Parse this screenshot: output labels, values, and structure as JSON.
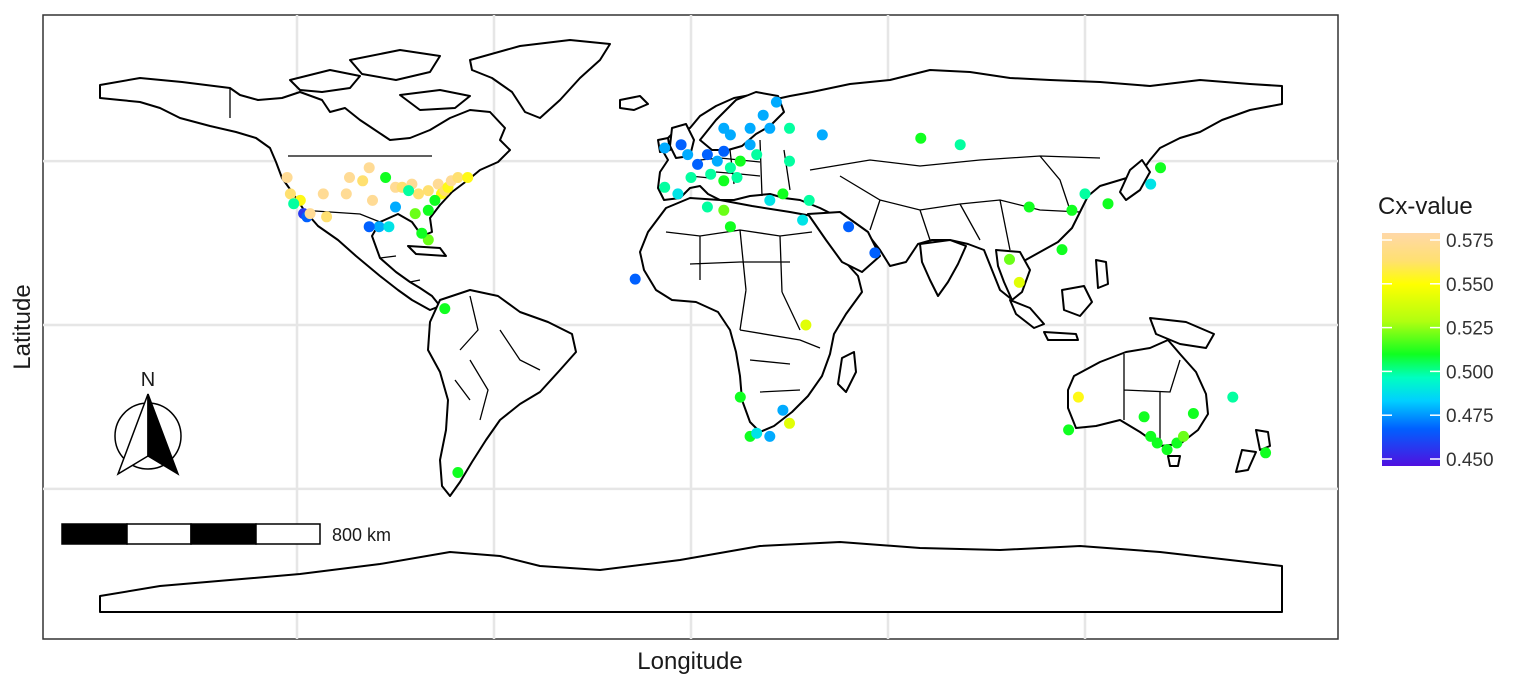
{
  "axes": {
    "xlabel": "Longitude",
    "ylabel": "Latitude"
  },
  "legend": {
    "title": "Cx-value",
    "range": [
      0.45,
      0.575
    ],
    "ticks": [
      "0.575",
      "0.550",
      "0.525",
      "0.500",
      "0.475",
      "0.450"
    ],
    "tick_values": [
      0.575,
      0.55,
      0.525,
      0.5,
      0.475,
      0.45
    ],
    "gradient": [
      {
        "at": 0.0,
        "color": "#FFD8A8"
      },
      {
        "at": 0.12,
        "color": "#FFE070"
      },
      {
        "at": 0.22,
        "color": "#FFFF00"
      },
      {
        "at": 0.38,
        "color": "#B0FF10"
      },
      {
        "at": 0.52,
        "color": "#10FF20"
      },
      {
        "at": 0.62,
        "color": "#00FFC0"
      },
      {
        "at": 0.72,
        "color": "#00D0FF"
      },
      {
        "at": 0.84,
        "color": "#0060FF"
      },
      {
        "at": 1.0,
        "color": "#5010E0"
      }
    ]
  },
  "scale_bar": {
    "label": "800 km"
  },
  "north_arrow": {
    "label": "N"
  },
  "map": {
    "projection": "equirectangular",
    "lon_range": [
      -180,
      180
    ],
    "lat_range": [
      -90,
      90
    ],
    "gridlines": {
      "lon": [
        -120,
        -60,
        0,
        60,
        120
      ],
      "lat": [
        -50,
        0,
        50
      ]
    },
    "panel_border": true
  },
  "chart_data": {
    "type": "scatter",
    "x_variable": "Longitude",
    "y_variable": "Latitude",
    "color_variable": "Cx-value",
    "points": [
      {
        "lon": -123,
        "lat": 45,
        "cx": 0.57
      },
      {
        "lon": -122,
        "lat": 40,
        "cx": 0.56
      },
      {
        "lon": -119,
        "lat": 38,
        "cx": 0.55
      },
      {
        "lon": -118,
        "lat": 34,
        "cx": 0.46
      },
      {
        "lon": -117,
        "lat": 33,
        "cx": 0.47
      },
      {
        "lon": -116,
        "lat": 34,
        "cx": 0.57
      },
      {
        "lon": -121,
        "lat": 37,
        "cx": 0.5
      },
      {
        "lon": -112,
        "lat": 40,
        "cx": 0.57
      },
      {
        "lon": -111,
        "lat": 33,
        "cx": 0.56
      },
      {
        "lon": -105,
        "lat": 40,
        "cx": 0.57
      },
      {
        "lon": -104,
        "lat": 45,
        "cx": 0.57
      },
      {
        "lon": -98,
        "lat": 48,
        "cx": 0.57
      },
      {
        "lon": -100,
        "lat": 44,
        "cx": 0.56
      },
      {
        "lon": -97,
        "lat": 38,
        "cx": 0.57
      },
      {
        "lon": -93,
        "lat": 45,
        "cx": 0.51
      },
      {
        "lon": -90,
        "lat": 42,
        "cx": 0.57
      },
      {
        "lon": -88,
        "lat": 42,
        "cx": 0.56
      },
      {
        "lon": -85,
        "lat": 43,
        "cx": 0.57
      },
      {
        "lon": -83,
        "lat": 40,
        "cx": 0.56
      },
      {
        "lon": -80,
        "lat": 41,
        "cx": 0.56
      },
      {
        "lon": -77,
        "lat": 43,
        "cx": 0.57
      },
      {
        "lon": -76,
        "lat": 40,
        "cx": 0.55
      },
      {
        "lon": -75,
        "lat": 41,
        "cx": 0.56
      },
      {
        "lon": -74,
        "lat": 42,
        "cx": 0.55
      },
      {
        "lon": -73,
        "lat": 44,
        "cx": 0.57
      },
      {
        "lon": -71,
        "lat": 45,
        "cx": 0.56
      },
      {
        "lon": -68,
        "lat": 45,
        "cx": 0.55
      },
      {
        "lon": -78,
        "lat": 38,
        "cx": 0.51
      },
      {
        "lon": -80,
        "lat": 35,
        "cx": 0.51
      },
      {
        "lon": -84,
        "lat": 34,
        "cx": 0.52
      },
      {
        "lon": -86,
        "lat": 41,
        "cx": 0.5
      },
      {
        "lon": -90,
        "lat": 36,
        "cx": 0.48
      },
      {
        "lon": -95,
        "lat": 30,
        "cx": 0.48
      },
      {
        "lon": -92,
        "lat": 30,
        "cx": 0.49
      },
      {
        "lon": -98,
        "lat": 30,
        "cx": 0.47
      },
      {
        "lon": -80,
        "lat": 26,
        "cx": 0.52
      },
      {
        "lon": -82,
        "lat": 28,
        "cx": 0.51
      },
      {
        "lon": -75,
        "lat": 5,
        "cx": 0.51
      },
      {
        "lon": -71,
        "lat": -45,
        "cx": 0.51
      },
      {
        "lon": -8,
        "lat": 54,
        "cx": 0.48
      },
      {
        "lon": -3,
        "lat": 55,
        "cx": 0.47
      },
      {
        "lon": -1,
        "lat": 52,
        "cx": 0.48
      },
      {
        "lon": 2,
        "lat": 49,
        "cx": 0.47
      },
      {
        "lon": 0,
        "lat": 45,
        "cx": 0.5
      },
      {
        "lon": -4,
        "lat": 40,
        "cx": 0.49
      },
      {
        "lon": -8,
        "lat": 42,
        "cx": 0.5
      },
      {
        "lon": 5,
        "lat": 52,
        "cx": 0.47
      },
      {
        "lon": 8,
        "lat": 50,
        "cx": 0.48
      },
      {
        "lon": 10,
        "lat": 53,
        "cx": 0.47
      },
      {
        "lon": 12,
        "lat": 48,
        "cx": 0.5
      },
      {
        "lon": 15,
        "lat": 50,
        "cx": 0.51
      },
      {
        "lon": 18,
        "lat": 55,
        "cx": 0.48
      },
      {
        "lon": 20,
        "lat": 52,
        "cx": 0.5
      },
      {
        "lon": 14,
        "lat": 45,
        "cx": 0.5
      },
      {
        "lon": 10,
        "lat": 44,
        "cx": 0.51
      },
      {
        "lon": 6,
        "lat": 46,
        "cx": 0.5
      },
      {
        "lon": 24,
        "lat": 60,
        "cx": 0.48
      },
      {
        "lon": 22,
        "lat": 64,
        "cx": 0.48
      },
      {
        "lon": 18,
        "lat": 60,
        "cx": 0.48
      },
      {
        "lon": 12,
        "lat": 58,
        "cx": 0.48
      },
      {
        "lon": 10,
        "lat": 60,
        "cx": 0.48
      },
      {
        "lon": 26,
        "lat": 68,
        "cx": 0.48
      },
      {
        "lon": 30,
        "lat": 60,
        "cx": 0.5
      },
      {
        "lon": 40,
        "lat": 58,
        "cx": 0.48
      },
      {
        "lon": 30,
        "lat": 50,
        "cx": 0.5
      },
      {
        "lon": 36,
        "lat": 38,
        "cx": 0.5
      },
      {
        "lon": 28,
        "lat": 40,
        "cx": 0.51
      },
      {
        "lon": 24,
        "lat": 38,
        "cx": 0.49
      },
      {
        "lon": 34,
        "lat": 32,
        "cx": 0.49
      },
      {
        "lon": 48,
        "lat": 30,
        "cx": 0.47
      },
      {
        "lon": 56,
        "lat": 22,
        "cx": 0.47
      },
      {
        "lon": 5,
        "lat": 36,
        "cx": 0.5
      },
      {
        "lon": 10,
        "lat": 35,
        "cx": 0.52
      },
      {
        "lon": 12,
        "lat": 30,
        "cx": 0.51
      },
      {
        "lon": -17,
        "lat": 14,
        "cx": 0.47
      },
      {
        "lon": 70,
        "lat": 57,
        "cx": 0.51
      },
      {
        "lon": 82,
        "lat": 55,
        "cx": 0.5
      },
      {
        "lon": 103,
        "lat": 36,
        "cx": 0.51
      },
      {
        "lon": 120,
        "lat": 40,
        "cx": 0.5
      },
      {
        "lon": 116,
        "lat": 35,
        "cx": 0.51
      },
      {
        "lon": 127,
        "lat": 37,
        "cx": 0.51
      },
      {
        "lon": 140,
        "lat": 43,
        "cx": 0.49
      },
      {
        "lon": 143,
        "lat": 48,
        "cx": 0.51
      },
      {
        "lon": 113,
        "lat": 23,
        "cx": 0.51
      },
      {
        "lon": 97,
        "lat": 20,
        "cx": 0.52
      },
      {
        "lon": 100,
        "lat": 13,
        "cx": 0.54
      },
      {
        "lon": 35,
        "lat": 0,
        "cx": 0.54
      },
      {
        "lon": 15,
        "lat": -22,
        "cx": 0.51
      },
      {
        "lon": 28,
        "lat": -26,
        "cx": 0.48
      },
      {
        "lon": 30,
        "lat": -30,
        "cx": 0.54
      },
      {
        "lon": 18,
        "lat": -34,
        "cx": 0.51
      },
      {
        "lon": 20,
        "lat": -33,
        "cx": 0.49
      },
      {
        "lon": 24,
        "lat": -34,
        "cx": 0.48
      },
      {
        "lon": 118,
        "lat": -22,
        "cx": 0.55
      },
      {
        "lon": 115,
        "lat": -32,
        "cx": 0.51
      },
      {
        "lon": 138,
        "lat": -28,
        "cx": 0.51
      },
      {
        "lon": 145,
        "lat": -38,
        "cx": 0.51
      },
      {
        "lon": 148,
        "lat": -36,
        "cx": 0.51
      },
      {
        "lon": 150,
        "lat": -34,
        "cx": 0.52
      },
      {
        "lon": 142,
        "lat": -36,
        "cx": 0.51
      },
      {
        "lon": 140,
        "lat": -34,
        "cx": 0.51
      },
      {
        "lon": 153,
        "lat": -27,
        "cx": 0.51
      },
      {
        "lon": 165,
        "lat": -22,
        "cx": 0.5
      },
      {
        "lon": 175,
        "lat": -39,
        "cx": 0.51
      }
    ]
  }
}
